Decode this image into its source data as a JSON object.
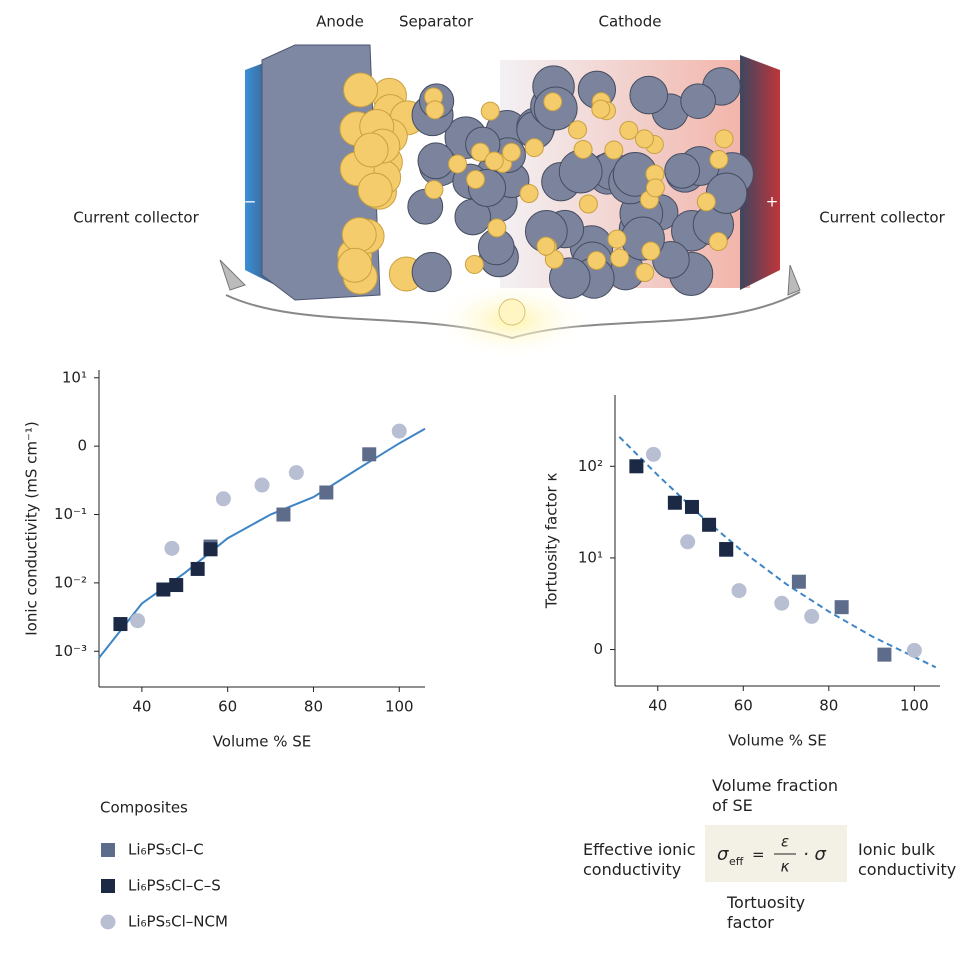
{
  "illustration": {
    "anode": "Anode",
    "separator": "Separator",
    "cathode": "Cathode",
    "collector_left": "Current collector",
    "collector_right": "Current collector",
    "minus": "−",
    "plus": "+"
  },
  "chart_data": [
    {
      "type": "scatter",
      "x_label": "Volume % SE",
      "y_label": "Ionic conductivity (mS cm⁻¹)",
      "legend_title": "Composites",
      "xlim": [
        30,
        106
      ],
      "xticks": [
        40,
        60,
        80,
        100
      ],
      "ylog": true,
      "ylim": [
        0.0003,
        13
      ],
      "yticks": [
        {
          "value": 0.001,
          "label": "10⁻³"
        },
        {
          "value": 0.01,
          "label": "10⁻²"
        },
        {
          "value": 0.1,
          "label": "10⁻¹"
        },
        {
          "value": 1,
          "label": "0"
        },
        {
          "value": 10,
          "label": "10¹"
        }
      ],
      "series": [
        {
          "name": "Li₆PS₅Cl–C",
          "color": "#5d6c8a",
          "marker": "square",
          "x": [
            56,
            73,
            83,
            93
          ],
          "values": [
            0.034,
            0.1,
            0.21,
            0.76
          ]
        },
        {
          "name": "Li₆PS₅Cl–C–S",
          "color": "#1b2945",
          "marker": "square",
          "x": [
            35,
            45,
            48,
            53,
            56
          ],
          "values": [
            0.0025,
            0.008,
            0.0093,
            0.016,
            0.031
          ]
        },
        {
          "name": "Li₆PS₅Cl–NCM",
          "color": "#b9bfd3",
          "marker": "circle",
          "x": [
            39,
            47,
            59,
            68,
            76,
            100
          ],
          "values": [
            0.0028,
            0.032,
            0.17,
            0.27,
            0.41,
            1.66
          ]
        }
      ],
      "fit": {
        "color": "#3d85c6",
        "dashed": false,
        "x": [
          30,
          40,
          50,
          60,
          70,
          80,
          90,
          100,
          106
        ],
        "values": [
          0.0008,
          0.005,
          0.014,
          0.045,
          0.1,
          0.18,
          0.45,
          1.1,
          1.8
        ]
      }
    },
    {
      "type": "scatter",
      "x_label": "Volume % SE",
      "y_label": "Tortuosity factor κ",
      "xlim": [
        30,
        106
      ],
      "xticks": [
        40,
        60,
        80,
        100
      ],
      "ylog": true,
      "ylim": [
        0.4,
        600
      ],
      "yticks": [
        {
          "value": 1,
          "label": "0"
        },
        {
          "value": 10,
          "label": "10¹"
        },
        {
          "value": 100,
          "label": "10²"
        }
      ],
      "series": [
        {
          "name": "Li₆PS₅Cl–C",
          "color": "#5d6c8a",
          "marker": "square",
          "x": [
            56,
            73,
            83,
            93
          ],
          "values": [
            12.2,
            5.5,
            2.9,
            0.88
          ]
        },
        {
          "name": "Li₆PS₅Cl–C–S",
          "color": "#1b2945",
          "marker": "square",
          "x": [
            35,
            44,
            48,
            52,
            56
          ],
          "values": [
            100,
            40,
            36,
            23,
            12.5
          ]
        },
        {
          "name": "Li₆PS₅Cl–NCM",
          "color": "#b9bfd3",
          "marker": "circle",
          "x": [
            39,
            47,
            59,
            69,
            76,
            100
          ],
          "values": [
            135,
            15,
            4.4,
            3.2,
            2.3,
            0.98
          ]
        }
      ],
      "fit": {
        "color": "#3d85c6",
        "dashed": true,
        "x": [
          31,
          40,
          50,
          60,
          70,
          80,
          90,
          100,
          105
        ],
        "values": [
          210,
          80,
          29,
          11.6,
          5.2,
          2.6,
          1.4,
          0.83,
          0.64
        ]
      }
    }
  ],
  "equation": {
    "top": "Volume fraction of SE",
    "left": "Effective ionic conductivity",
    "right": "Ionic bulk conductivity",
    "bottom": "Tortuosity factor",
    "sigma": "σ",
    "sub": "eff",
    "eq": "=",
    "num": "ε",
    "den": "κ",
    "tail": "· σ"
  }
}
